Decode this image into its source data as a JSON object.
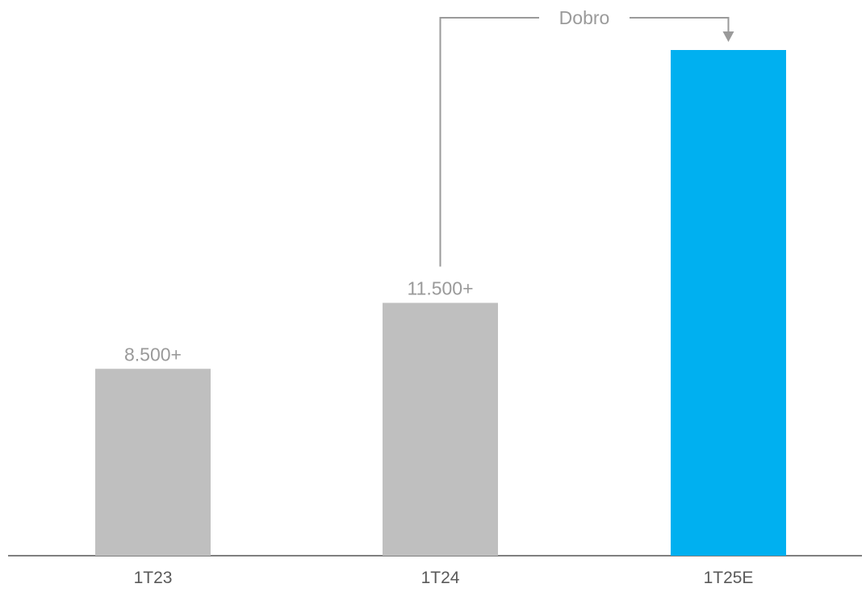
{
  "chart_data": {
    "type": "bar",
    "categories": [
      "1T23",
      "1T24",
      "1T25E"
    ],
    "values": [
      8500,
      11500,
      23000
    ],
    "data_labels": [
      "8.500+",
      "11.500+",
      ""
    ],
    "colors": [
      "#bfbfbf",
      "#bfbfbf",
      "#00b0f0"
    ],
    "title": "",
    "xlabel": "",
    "ylabel": "",
    "ylim": [
      0,
      23000
    ],
    "grid": false,
    "legend": "none",
    "annotation": {
      "text": "Dobro",
      "from_category": "1T24",
      "to_category": "1T25E"
    },
    "colors_meta": {
      "axis": "#7f7f7f",
      "annotation_line": "#9a9a9a",
      "label_text": "#9a9a9a",
      "tick_text": "#595959"
    }
  }
}
